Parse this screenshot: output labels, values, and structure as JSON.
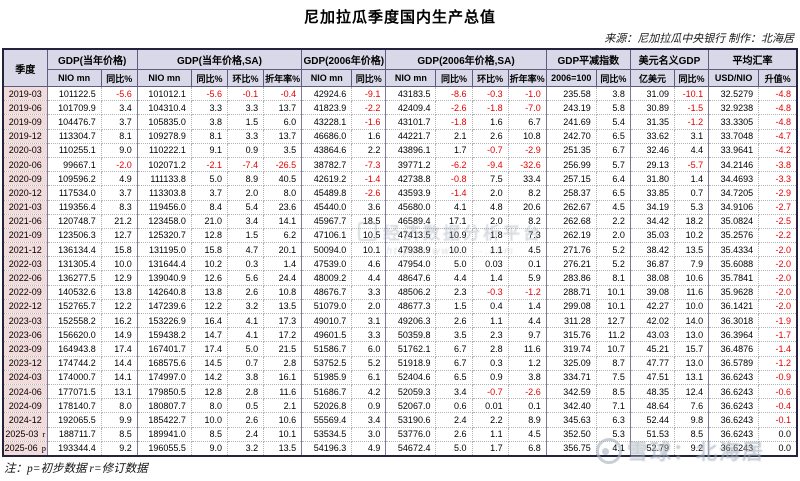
{
  "title": "尼加拉瓜季度国内生产总值",
  "source_note": "来源：尼加拉瓜中央银行  制作：北海居",
  "footnote": "注：p=初步数据 r=修订数据",
  "watermark_center": {
    "line1": "经济数据分析平台",
    "line2": "https://www.t···.com"
  },
  "watermark_xueqiu": {
    "text": "雪球：北海居"
  },
  "colors": {
    "negative": "#e60000",
    "header_bg": "#d8d8e8",
    "quarter_bg": "#f2dcdb",
    "border_dark": "#23233d"
  },
  "chart_data": {
    "type": "table",
    "title": "尼加拉瓜季度国内生产总值",
    "col_groups": [
      {
        "label": "季度",
        "span": 1
      },
      {
        "label": "GDP(当年价格)",
        "span": 2
      },
      {
        "label": "GDP(当年价格,SA)",
        "span": 4
      },
      {
        "label": "GDP(2006年价格)",
        "span": 2
      },
      {
        "label": "GDP(2006年价格,SA)",
        "span": 4
      },
      {
        "label": "GDP平减指数",
        "span": 2
      },
      {
        "label": "美元名义GDP",
        "span": 2
      },
      {
        "label": "平均汇率",
        "span": 2
      }
    ],
    "sub_headers": [
      "NIO mn",
      "同比%",
      "NIO mn",
      "同比%",
      "环比%",
      "折年率%",
      "NIO mn",
      "同比%",
      "NIO mn",
      "同比%",
      "环比%",
      "折年率%",
      "2006=100",
      "同比%",
      "亿美元",
      "同比%",
      "USD/NIO",
      "升值%"
    ],
    "rows": [
      {
        "q": "2019-03",
        "flag": "",
        "v": [
          "101122.5",
          "-5.6",
          "101012.1",
          "-5.6",
          "-0.1",
          "-0.4",
          "42924.6",
          "-9.1",
          "43183.5",
          "-8.6",
          "-0.3",
          "-1.0",
          "235.58",
          "3.8",
          "31.09",
          "-10.1",
          "32.5279",
          "-4.8"
        ]
      },
      {
        "q": "2019-06",
        "flag": "",
        "v": [
          "101709.9",
          "3.4",
          "104310.4",
          "3.3",
          "3.3",
          "13.7",
          "41823.9",
          "-2.2",
          "42409.4",
          "-2.6",
          "-1.8",
          "-7.0",
          "243.19",
          "5.8",
          "30.89",
          "-1.5",
          "32.9238",
          "-4.8"
        ]
      },
      {
        "q": "2019-09",
        "flag": "",
        "v": [
          "104476.7",
          "3.7",
          "105835.0",
          "3.8",
          "1.5",
          "6.0",
          "43228.1",
          "-1.6",
          "43101.7",
          "-1.8",
          "1.6",
          "6.7",
          "241.69",
          "5.4",
          "31.35",
          "-1.2",
          "33.3305",
          "-4.8"
        ]
      },
      {
        "q": "2019-12",
        "flag": "",
        "v": [
          "113304.7",
          "8.1",
          "109278.9",
          "8.1",
          "3.3",
          "13.7",
          "46686.0",
          "1.6",
          "44221.7",
          "2.1",
          "2.6",
          "10.8",
          "242.70",
          "6.5",
          "33.62",
          "3.1",
          "33.7048",
          "-4.7"
        ]
      },
      {
        "q": "2020-03",
        "flag": "",
        "v": [
          "110255.1",
          "9.0",
          "110222.1",
          "9.1",
          "0.9",
          "3.5",
          "43864.6",
          "2.2",
          "43896.1",
          "1.7",
          "-0.7",
          "-2.9",
          "251.35",
          "6.7",
          "32.46",
          "4.4",
          "33.9641",
          "-4.2"
        ]
      },
      {
        "q": "2020-06",
        "flag": "",
        "v": [
          "99667.1",
          "-2.0",
          "102071.2",
          "-2.1",
          "-7.4",
          "-26.5",
          "38782.7",
          "-7.3",
          "39771.2",
          "-6.2",
          "-9.4",
          "-32.6",
          "256.99",
          "5.7",
          "29.13",
          "-5.7",
          "34.2146",
          "-3.8"
        ]
      },
      {
        "q": "2020-09",
        "flag": "",
        "v": [
          "109596.2",
          "4.9",
          "111133.8",
          "5.0",
          "8.9",
          "40.5",
          "42619.2",
          "-1.4",
          "42738.8",
          "-0.8",
          "7.5",
          "33.4",
          "257.15",
          "6.4",
          "31.80",
          "1.4",
          "34.4693",
          "-3.3"
        ]
      },
      {
        "q": "2020-12",
        "flag": "",
        "v": [
          "117534.0",
          "3.7",
          "113303.8",
          "3.7",
          "2.0",
          "8.0",
          "45489.8",
          "-2.6",
          "43593.9",
          "-1.4",
          "2.0",
          "8.2",
          "258.37",
          "6.5",
          "33.85",
          "0.7",
          "34.7205",
          "-2.9"
        ]
      },
      {
        "q": "2021-03",
        "flag": "",
        "v": [
          "119356.4",
          "8.3",
          "119456.0",
          "8.4",
          "5.4",
          "23.6",
          "45440.0",
          "3.6",
          "45680.0",
          "4.1",
          "4.8",
          "20.6",
          "262.67",
          "4.5",
          "34.19",
          "5.3",
          "34.9106",
          "-2.7"
        ]
      },
      {
        "q": "2021-06",
        "flag": "",
        "v": [
          "120748.7",
          "21.2",
          "123458.0",
          "21.0",
          "3.4",
          "14.1",
          "45967.7",
          "18.5",
          "46589.4",
          "17.1",
          "2.0",
          "8.2",
          "262.68",
          "2.2",
          "34.42",
          "18.2",
          "35.0824",
          "-2.5"
        ]
      },
      {
        "q": "2021-09",
        "flag": "",
        "v": [
          "123506.3",
          "12.7",
          "125320.7",
          "12.8",
          "1.5",
          "6.2",
          "47106.1",
          "10.5",
          "47413.5",
          "10.9",
          "1.8",
          "7.3",
          "262.19",
          "2.0",
          "35.03",
          "10.2",
          "35.2576",
          "-2.2"
        ]
      },
      {
        "q": "2021-12",
        "flag": "",
        "v": [
          "136134.4",
          "15.8",
          "131195.0",
          "15.8",
          "4.7",
          "20.1",
          "50094.0",
          "10.1",
          "47938.9",
          "10.0",
          "1.1",
          "4.5",
          "271.76",
          "5.2",
          "38.42",
          "13.5",
          "35.4334",
          "-2.0"
        ]
      },
      {
        "q": "2022-03",
        "flag": "",
        "v": [
          "131305.4",
          "10.0",
          "131644.4",
          "10.2",
          "0.3",
          "1.4",
          "47539.0",
          "4.6",
          "47954.0",
          "5.0",
          "0.03",
          "0.1",
          "276.21",
          "5.2",
          "36.87",
          "7.9",
          "35.6088",
          "-2.0"
        ]
      },
      {
        "q": "2022-06",
        "flag": "",
        "v": [
          "136277.5",
          "12.9",
          "139040.9",
          "12.6",
          "5.6",
          "24.4",
          "48009.2",
          "4.4",
          "48647.6",
          "4.4",
          "1.4",
          "5.9",
          "283.86",
          "8.1",
          "38.08",
          "10.6",
          "35.7841",
          "-2.0"
        ]
      },
      {
        "q": "2022-09",
        "flag": "",
        "v": [
          "140532.6",
          "13.8",
          "142640.8",
          "13.8",
          "2.6",
          "10.8",
          "48676.7",
          "3.3",
          "48506.2",
          "2.3",
          "-0.3",
          "-1.2",
          "288.71",
          "10.1",
          "39.08",
          "11.6",
          "35.9628",
          "-2.0"
        ]
      },
      {
        "q": "2022-12",
        "flag": "",
        "v": [
          "152765.7",
          "12.2",
          "147239.6",
          "12.2",
          "3.2",
          "13.5",
          "51079.0",
          "2.0",
          "48677.3",
          "1.5",
          "0.4",
          "1.4",
          "299.08",
          "10.1",
          "42.27",
          "10.0",
          "36.1421",
          "-2.0"
        ]
      },
      {
        "q": "2023-03",
        "flag": "",
        "v": [
          "152558.2",
          "16.2",
          "153226.9",
          "16.4",
          "4.1",
          "17.3",
          "49010.7",
          "3.1",
          "49206.3",
          "2.6",
          "1.1",
          "4.4",
          "311.28",
          "12.7",
          "42.02",
          "14.0",
          "36.3018",
          "-1.9"
        ]
      },
      {
        "q": "2023-06",
        "flag": "",
        "v": [
          "156620.0",
          "14.9",
          "159438.2",
          "14.7",
          "4.1",
          "17.2",
          "49601.5",
          "3.3",
          "50359.8",
          "3.5",
          "2.3",
          "9.7",
          "315.76",
          "11.2",
          "43.03",
          "13.0",
          "36.3964",
          "-1.7"
        ]
      },
      {
        "q": "2023-09",
        "flag": "",
        "v": [
          "164943.8",
          "17.4",
          "167401.7",
          "17.4",
          "5.0",
          "21.5",
          "51586.7",
          "6.0",
          "51762.1",
          "6.7",
          "2.8",
          "11.6",
          "319.74",
          "10.7",
          "45.21",
          "15.7",
          "36.4876",
          "-1.4"
        ]
      },
      {
        "q": "2023-12",
        "flag": "",
        "v": [
          "174744.2",
          "14.4",
          "168575.6",
          "14.5",
          "0.7",
          "2.8",
          "53752.5",
          "5.2",
          "51918.9",
          "6.7",
          "0.3",
          "1.2",
          "325.09",
          "8.7",
          "47.77",
          "13.0",
          "36.5789",
          "-1.2"
        ]
      },
      {
        "q": "2024-03",
        "flag": "",
        "v": [
          "174000.7",
          "14.1",
          "174997.0",
          "14.2",
          "3.8",
          "16.1",
          "51985.9",
          "6.1",
          "52404.6",
          "6.5",
          "0.9",
          "3.8",
          "334.71",
          "7.5",
          "47.51",
          "13.1",
          "36.6243",
          "-0.9"
        ]
      },
      {
        "q": "2024-06",
        "flag": "",
        "v": [
          "177071.5",
          "13.1",
          "179850.5",
          "12.8",
          "2.8",
          "11.6",
          "51686.7",
          "4.2",
          "52059.3",
          "3.4",
          "-0.7",
          "-2.6",
          "342.59",
          "8.5",
          "48.35",
          "12.4",
          "36.6243",
          "-0.6"
        ]
      },
      {
        "q": "2024-09",
        "flag": "",
        "v": [
          "178140.7",
          "8.0",
          "180807.7",
          "8.0",
          "0.5",
          "2.1",
          "52026.8",
          "0.9",
          "52067.0",
          "0.6",
          "0.01",
          "0.1",
          "342.40",
          "7.1",
          "48.64",
          "7.6",
          "36.6243",
          "-0.4"
        ]
      },
      {
        "q": "2024-12",
        "flag": "",
        "v": [
          "192065.5",
          "9.9",
          "185422.7",
          "10.0",
          "2.6",
          "10.6",
          "55569.4",
          "3.4",
          "53190.6",
          "2.4",
          "2.2",
          "8.9",
          "345.63",
          "6.3",
          "52.44",
          "9.8",
          "36.6243",
          "-0.1"
        ]
      },
      {
        "q": "2025-03",
        "flag": "r",
        "v": [
          "188711.7",
          "8.5",
          "189941.0",
          "8.5",
          "2.4",
          "10.1",
          "53534.5",
          "3.0",
          "53776.0",
          "2.6",
          "1.1",
          "4.5",
          "352.50",
          "5.3",
          "51.53",
          "8.5",
          "36.6243",
          "0.0"
        ]
      },
      {
        "q": "2025-06",
        "flag": "p",
        "v": [
          "193344.4",
          "9.2",
          "196055.5",
          "9.0",
          "3.2",
          "13.5",
          "54196.3",
          "4.9",
          "54672.4",
          "5.0",
          "1.7",
          "6.8",
          "356.75",
          "4.1",
          "52.79",
          "9.2",
          "36.6243",
          "0.0"
        ]
      }
    ]
  }
}
